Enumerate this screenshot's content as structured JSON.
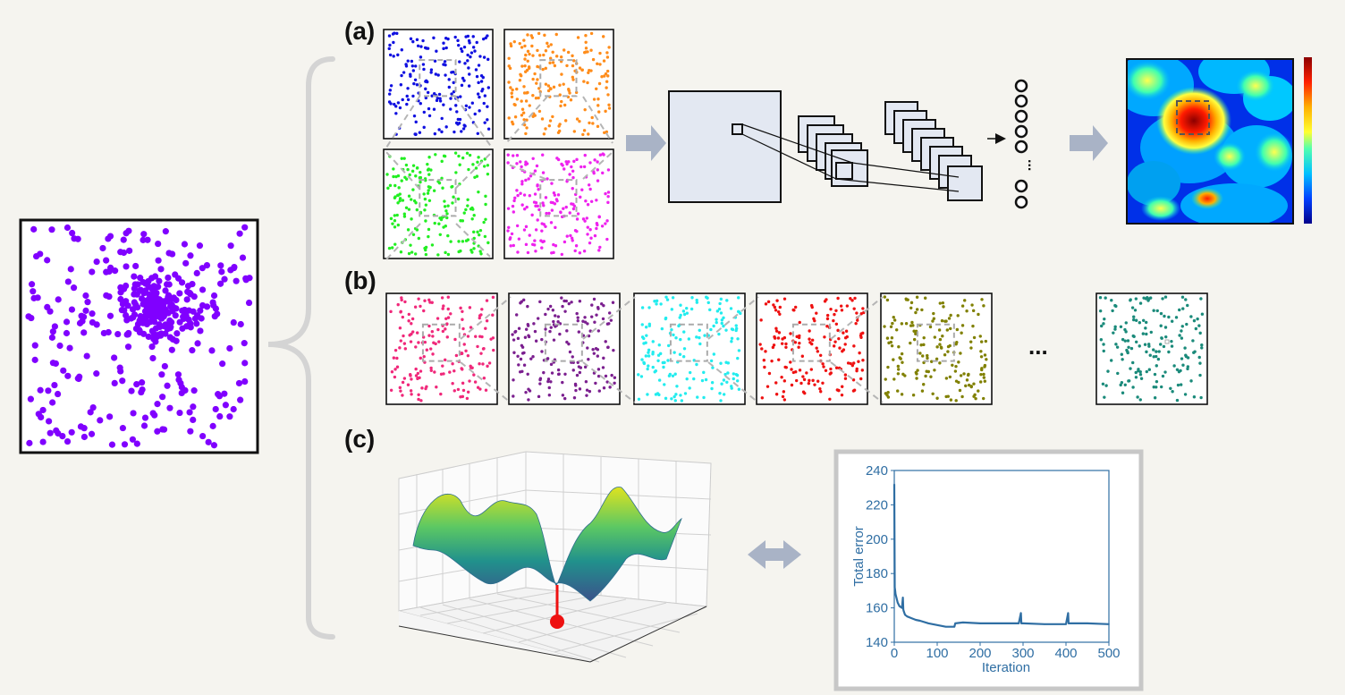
{
  "panels": {
    "a": "(a)",
    "b": "(b)",
    "c": "(c)"
  },
  "colors": {
    "main_points": "#8000ff",
    "a_points": [
      "#1010e0",
      "#ff8c1a",
      "#22ee22",
      "#ee22ee"
    ],
    "b_points": [
      "#f0287a",
      "#7b1f8f",
      "#22ecee",
      "#ee1111",
      "#808000",
      "#1a8a7a"
    ],
    "arrow": "#a9b3c6",
    "cnn_fill": "#e3e8f2",
    "plot_line": "#2f6ea3",
    "marker": "#ee1111"
  },
  "ellipsis": "...",
  "dense_layer_ellipsis": "...",
  "chart_data": {
    "type": "line",
    "title": "",
    "xlabel": "Iteration",
    "ylabel": "Total error",
    "xlim": [
      0,
      500
    ],
    "ylim": [
      140,
      240
    ],
    "xticks": [
      "0",
      "100",
      "200",
      "300",
      "400",
      "500"
    ],
    "yticks": [
      "140",
      "160",
      "180",
      "200",
      "220",
      "240"
    ],
    "series": [
      {
        "name": "Total error",
        "x": [
          0,
          1,
          2,
          3,
          5,
          8,
          12,
          18,
          20,
          21,
          22,
          25,
          30,
          40,
          50,
          60,
          80,
          100,
          120,
          140,
          142,
          160,
          200,
          250,
          290,
          295,
          296,
          300,
          350,
          400,
          405,
          406,
          410,
          450,
          500
        ],
        "y": [
          232,
          172,
          170,
          168,
          166,
          163,
          161,
          160,
          166,
          159,
          158,
          156,
          155,
          154,
          153,
          152.5,
          151,
          150,
          149,
          149,
          151,
          151.5,
          151,
          151,
          151,
          157,
          151,
          151,
          150.5,
          150.5,
          157,
          151,
          151,
          151,
          150.5
        ]
      }
    ]
  }
}
